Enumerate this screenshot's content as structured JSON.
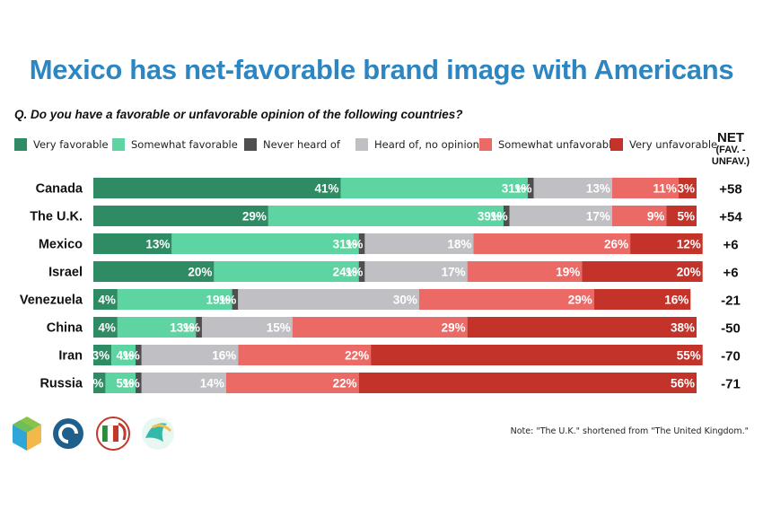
{
  "title": "Mexico has net-favorable brand image with Americans",
  "question": "Q. Do you have a favorable or unfavorable opinion of the following countries?",
  "net_header": {
    "line1": "NET",
    "line2": "(FAV. -",
    "line3": "UNFAV.)"
  },
  "note": "Note: \"The U.K.\" shortened from \"The United Kingdom.\"",
  "chart_data": {
    "type": "bar",
    "orientation": "horizontal",
    "stacked": true,
    "unit": "%",
    "categories": [
      "Canada",
      "The U.K.",
      "Mexico",
      "Israel",
      "Venezuela",
      "China",
      "Iran",
      "Russia"
    ],
    "series": [
      {
        "name": "Very favorable",
        "color": "#2e8b63",
        "values": [
          41,
          29,
          13,
          20,
          4,
          4,
          3,
          2
        ]
      },
      {
        "name": "Somewhat favorable",
        "color": "#5fd4a3",
        "values": [
          31,
          39,
          31,
          24,
          19,
          13,
          4,
          5
        ]
      },
      {
        "name": "Never heard of",
        "color": "#4f4f4f",
        "values": [
          1,
          1,
          1,
          1,
          1,
          1,
          1,
          1
        ]
      },
      {
        "name": "Heard of, no opinion",
        "color": "#c0c0c4",
        "values": [
          13,
          17,
          18,
          17,
          30,
          15,
          16,
          14
        ]
      },
      {
        "name": "Somewhat unfavorable",
        "color": "#eb6a66",
        "values": [
          11,
          9,
          26,
          19,
          29,
          29,
          22,
          22
        ]
      },
      {
        "name": "Very unfavorable",
        "color": "#c33329",
        "values": [
          3,
          5,
          12,
          20,
          16,
          38,
          55,
          56
        ]
      }
    ],
    "net": [
      "+58",
      "+54",
      "+6",
      "+6",
      "-21",
      "-50",
      "-70",
      "-71"
    ]
  }
}
